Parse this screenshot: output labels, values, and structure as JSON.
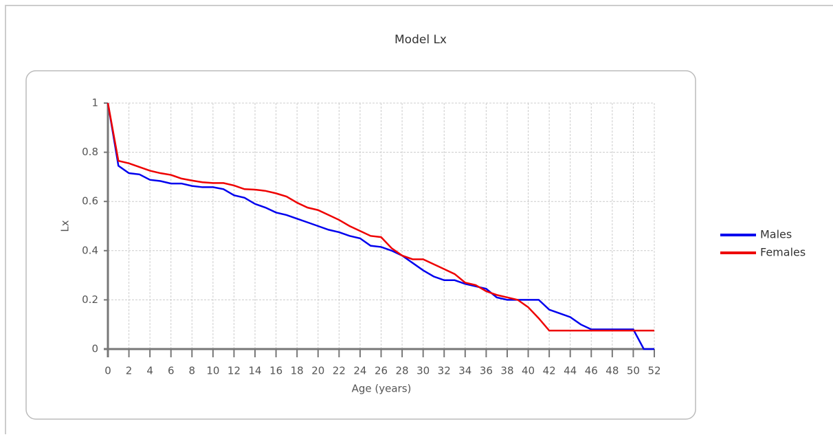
{
  "chart_data": {
    "type": "line",
    "title": "Model Lx",
    "xlabel": "Age (years)",
    "ylabel": "Lx",
    "x": [
      0,
      1,
      2,
      3,
      4,
      5,
      6,
      7,
      8,
      9,
      10,
      11,
      12,
      13,
      14,
      15,
      16,
      17,
      18,
      19,
      20,
      21,
      22,
      23,
      24,
      25,
      26,
      27,
      28,
      29,
      30,
      31,
      32,
      33,
      34,
      35,
      36,
      37,
      38,
      39,
      40,
      41,
      42,
      43,
      44,
      45,
      46,
      47,
      48,
      49,
      50,
      51,
      52
    ],
    "series": [
      {
        "name": "Males",
        "color": "#0000ee",
        "values": [
          1,
          0.745,
          0.715,
          0.71,
          0.688,
          0.683,
          0.673,
          0.673,
          0.663,
          0.658,
          0.658,
          0.65,
          0.625,
          0.615,
          0.59,
          0.575,
          0.555,
          0.545,
          0.53,
          0.515,
          0.5,
          0.485,
          0.475,
          0.46,
          0.45,
          0.42,
          0.415,
          0.4,
          0.38,
          0.35,
          0.32,
          0.295,
          0.28,
          0.28,
          0.265,
          0.255,
          0.245,
          0.21,
          0.2,
          0.2,
          0.2,
          0.2,
          0.16,
          0.145,
          0.13,
          0.1,
          0.08,
          0.08,
          0.08,
          0.08,
          0.08,
          0,
          0
        ]
      },
      {
        "name": "Females",
        "color": "#ee0000",
        "values": [
          1,
          0.765,
          0.755,
          0.74,
          0.725,
          0.715,
          0.708,
          0.693,
          0.685,
          0.678,
          0.675,
          0.675,
          0.665,
          0.65,
          0.648,
          0.643,
          0.633,
          0.62,
          0.595,
          0.575,
          0.565,
          0.545,
          0.525,
          0.5,
          0.48,
          0.46,
          0.455,
          0.41,
          0.38,
          0.365,
          0.365,
          0.345,
          0.325,
          0.305,
          0.27,
          0.26,
          0.235,
          0.22,
          0.21,
          0.2,
          0.17,
          0.125,
          0.075,
          0.075,
          0.075,
          0.075,
          0.075,
          0.075,
          0.075,
          0.075,
          0.075,
          0.075,
          0.075
        ]
      }
    ],
    "xlim": [
      0,
      52
    ],
    "xticks": [
      0,
      2,
      4,
      6,
      8,
      10,
      12,
      14,
      16,
      18,
      20,
      22,
      24,
      26,
      28,
      30,
      32,
      34,
      36,
      38,
      40,
      42,
      44,
      46,
      48,
      50,
      52
    ],
    "ylim": [
      0,
      1
    ],
    "yticks": [
      0,
      0.2,
      0.4,
      0.6,
      0.8,
      1
    ],
    "grid": true,
    "legend": "right"
  }
}
